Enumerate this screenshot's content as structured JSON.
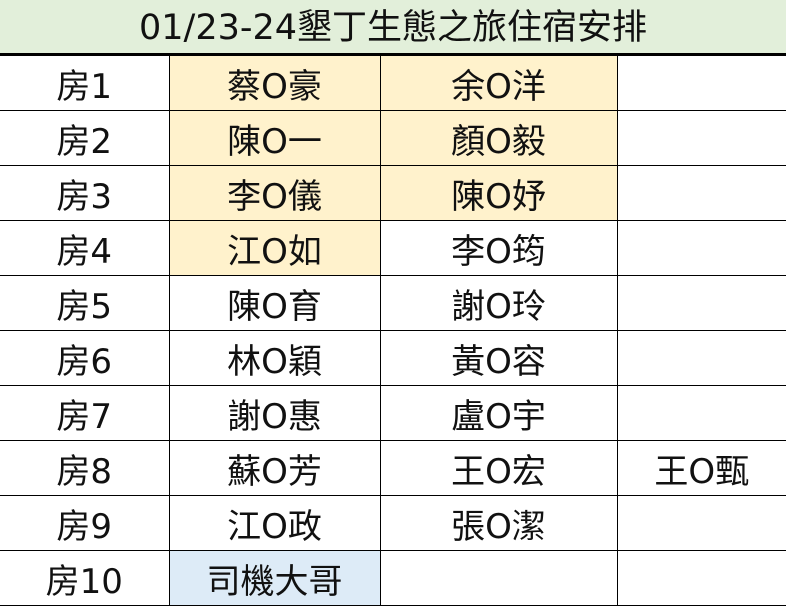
{
  "title": "01/23-24墾丁生態之旅住宿安排",
  "colors": {
    "title_bg": "#e2efda",
    "highlight_yellow": "#fff2cc",
    "highlight_blue": "#ddebf7"
  },
  "rooms": [
    {
      "room": "房1",
      "a": "蔡O豪",
      "b": "余O洋",
      "c": ""
    },
    {
      "room": "房2",
      "a": "陳O一",
      "b": "顏O毅",
      "c": ""
    },
    {
      "room": "房3",
      "a": "李O儀",
      "b": "陳O妤",
      "c": ""
    },
    {
      "room": "房4",
      "a": "江O如",
      "b": "李O筠",
      "c": ""
    },
    {
      "room": "房5",
      "a": "陳O育",
      "b": "謝O玲",
      "c": ""
    },
    {
      "room": "房6",
      "a": "林O穎",
      "b": "黃O容",
      "c": ""
    },
    {
      "room": "房7",
      "a": "謝O惠",
      "b": "盧O宇",
      "c": ""
    },
    {
      "room": "房8",
      "a": "蘇O芳",
      "b": "王O宏",
      "c": "王O甄"
    },
    {
      "room": "房9",
      "a": "江O政",
      "b": "張O潔",
      "c": ""
    },
    {
      "room": "房10",
      "a": "司機大哥",
      "b": "",
      "c": ""
    }
  ]
}
